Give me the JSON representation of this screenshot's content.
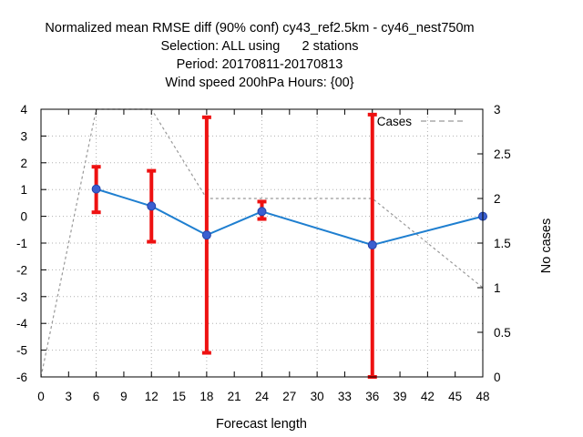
{
  "chart_data": {
    "type": "line",
    "title_lines": [
      "Normalized mean RMSE diff (90% conf) cy43_ref2.5km - cy46_nest750m",
      "Selection: ALL using      2 stations",
      "Period: 20170811-20170813",
      "Wind speed 200hPa   Hours: {00}"
    ],
    "xlabel": "Forecast length",
    "ylabel_right": "No cases",
    "xlim": [
      0,
      48
    ],
    "ylim": [
      -6,
      4
    ],
    "y2lim": [
      0,
      3
    ],
    "xticks": [
      "0",
      "3",
      "6",
      "9",
      "12",
      "15",
      "18",
      "21",
      "24",
      "27",
      "30",
      "33",
      "36",
      "39",
      "42",
      "45",
      "48"
    ],
    "yticks": [
      "4",
      "3",
      "2",
      "1",
      "0",
      "-1",
      "-2",
      "-3",
      "-4",
      "-5",
      "-6"
    ],
    "y2ticks": [
      "3",
      "2.5",
      "2",
      "1.5",
      "1",
      "0.5",
      "0"
    ],
    "grid": true,
    "legend": {
      "position": "top-right",
      "label": "Cases"
    },
    "series": [
      {
        "kind": "mean",
        "color": "#1f7fd0",
        "x": [
          6,
          12,
          18,
          24,
          36,
          48
        ],
        "y": [
          1.02,
          0.38,
          -0.7,
          0.18,
          -1.07,
          0.0
        ]
      },
      {
        "kind": "errorbar",
        "color": "#ee1111",
        "x": [
          6,
          12,
          18,
          24,
          36
        ],
        "low": [
          0.15,
          -0.95,
          -5.1,
          -0.1,
          -6.0
        ],
        "high": [
          1.85,
          1.7,
          3.7,
          0.55,
          3.8
        ]
      },
      {
        "kind": "cases",
        "name": "Cases",
        "color": "#999999",
        "axis": "right",
        "x": [
          0,
          6,
          12,
          18,
          24,
          36,
          48
        ],
        "y": [
          0,
          3,
          3,
          2,
          2,
          2,
          1
        ]
      }
    ]
  }
}
